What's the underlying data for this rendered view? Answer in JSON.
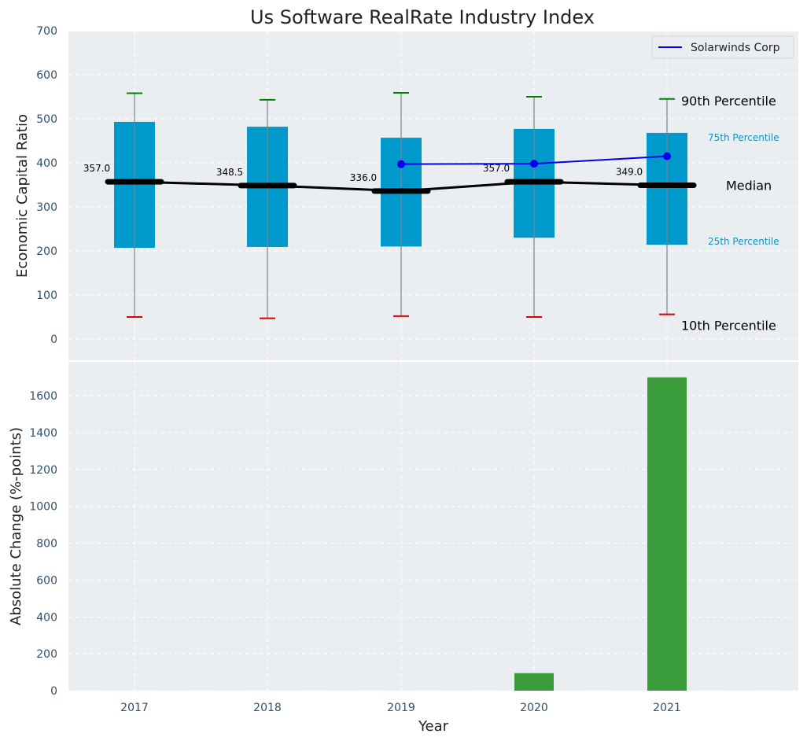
{
  "chart_data": [
    {
      "type": "box",
      "title": "Us Software RealRate Industry Index",
      "ylabel": "Economic Capital Ratio",
      "ylim": [
        -50,
        700
      ],
      "yticks": [
        0,
        100,
        200,
        300,
        400,
        500,
        600,
        700
      ],
      "categories": [
        "2017",
        "2018",
        "2019",
        "2020",
        "2021"
      ],
      "p10": [
        50,
        47,
        52,
        50,
        56
      ],
      "p25": [
        207,
        209,
        210,
        230,
        214
      ],
      "median": [
        357.0,
        348.5,
        336.0,
        357.0,
        349.0
      ],
      "median_labels": [
        "357.0",
        "348.5",
        "336.0",
        "357.0",
        "349.0"
      ],
      "p75": [
        493,
        482,
        457,
        477,
        468
      ],
      "p90": [
        558,
        543,
        559,
        550,
        545
      ],
      "company_series": {
        "name": "Solarwinds Corp",
        "x": [
          "2019",
          "2020",
          "2021"
        ],
        "values": [
          397,
          398,
          415
        ],
        "color": "#0000ee"
      },
      "annotations": {
        "p90": "90th Percentile",
        "p75": "75th Percentile",
        "median": "Median",
        "p25": "25th Percentile",
        "p10": "10th Percentile"
      },
      "legend_position": "top-right",
      "grid": true,
      "colors": {
        "box": "#0099cc",
        "median": "#000000",
        "whisker_top": "#008000",
        "whisker_bottom": "#dd0000",
        "percentile_text": "#0099cc",
        "background": "#eaeef0"
      }
    },
    {
      "type": "bar",
      "xlabel": "Year",
      "ylabel": "Absolute Change (%-points)",
      "ylim": [
        0,
        1780
      ],
      "yticks": [
        0,
        200,
        400,
        600,
        800,
        1000,
        1200,
        1400,
        1600
      ],
      "categories": [
        "2017",
        "2018",
        "2019",
        "2020",
        "2021"
      ],
      "values": [
        0,
        0,
        0,
        95,
        1700
      ],
      "grid": true,
      "colors": {
        "bar": "#3a9b3a",
        "background": "#eaeef0"
      }
    }
  ]
}
